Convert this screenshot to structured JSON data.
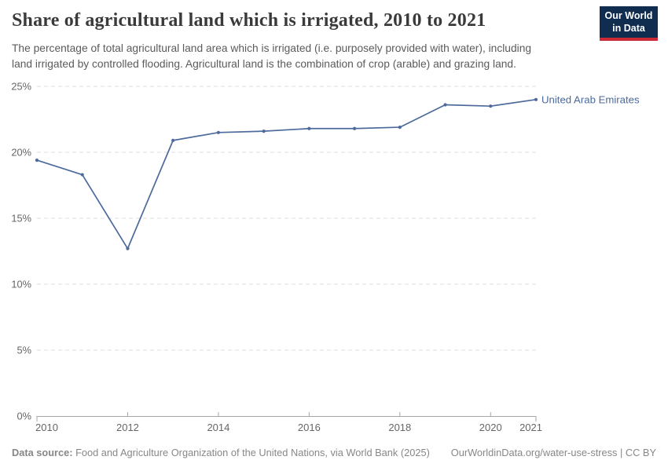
{
  "header": {
    "title": "Share of agricultural land which is irrigated, 2010 to 2021",
    "subtitle_lines": [
      "The percentage of total agricultural land area which is irrigated (i.e. purposely provided with water), including",
      "land irrigated by controlled flooding. Agricultural land is the combination of crop (arable) and grazing land."
    ],
    "logo": {
      "line1": "Our World",
      "line2": "in Data"
    }
  },
  "chart_data": {
    "type": "line",
    "title": "Share of agricultural land which is irrigated, 2010 to 2021",
    "x": [
      2010,
      2011,
      2012,
      2013,
      2014,
      2015,
      2016,
      2017,
      2018,
      2019,
      2020,
      2021
    ],
    "series": [
      {
        "name": "United Arab Emirates",
        "color": "#4C6A9C",
        "values": [
          19.4,
          18.3,
          12.7,
          20.9,
          21.5,
          21.6,
          21.8,
          21.8,
          21.9,
          23.6,
          23.5,
          24.0
        ]
      }
    ],
    "x_ticks": [
      2010,
      2012,
      2014,
      2016,
      2018,
      2020,
      2021
    ],
    "y_ticks": [
      0,
      5,
      10,
      15,
      20,
      25
    ],
    "y_unit": "%",
    "xlim": [
      2010,
      2021
    ],
    "ylim": [
      0,
      25
    ],
    "grid": "horizontal-dashed",
    "legend_position": "line-end-label",
    "marker": "dot"
  },
  "footer": {
    "datasource_label": "Data source:",
    "datasource_text": " Food and Agriculture Organization of the United Nations, via World Bank (2025)",
    "license": "OurWorldinData.org/water-use-stress | CC BY"
  },
  "colors": {
    "accent_line": "#4C6A9C",
    "logo_bg": "#102D50",
    "logo_stripe": "#CC2A36",
    "grid": "#DDDDDD",
    "axis": "#A5A5A5",
    "tick_label": "#666666",
    "title_text": "#3A3A3A",
    "subtitle_text": "#5B5B5B",
    "footer_text": "#878787"
  }
}
